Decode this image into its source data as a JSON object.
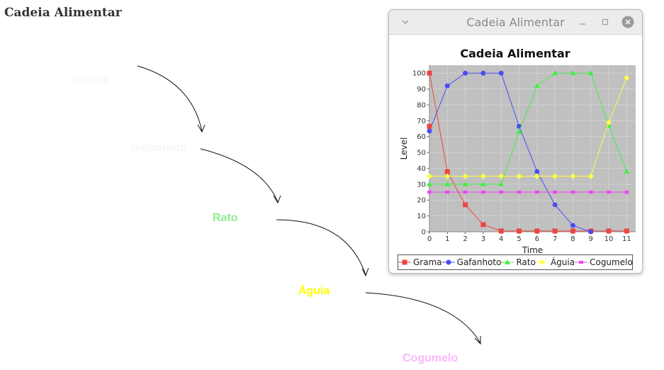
{
  "page": {
    "title": "Cadeia Alimentar"
  },
  "chain_labels": [
    {
      "text": "Grama",
      "color": "#f6f6f6"
    },
    {
      "text": "Gafanhoto",
      "color": "#f6f6f6"
    },
    {
      "text": "Rato",
      "color": "#90ee90"
    },
    {
      "text": "Águia",
      "color": "#ffff00"
    },
    {
      "text": "Cogumelo",
      "color": "#ffb6ff"
    }
  ],
  "window": {
    "title": "Cadeia Alimentar",
    "menu_icon": "chevron-down-icon",
    "minimize_icon": "minimize-icon",
    "maximize_icon": "maximize-icon",
    "close_icon": "close-icon"
  },
  "chart_data": {
    "type": "line",
    "title": "Cadeia Alimentar",
    "xlabel": "Time",
    "ylabel": "Level",
    "xlim": [
      0,
      11.5
    ],
    "ylim": [
      0,
      105
    ],
    "xticks": [
      "0",
      "1",
      "2",
      "3",
      "4",
      "5",
      "6",
      "7",
      "8",
      "9",
      "10",
      "11"
    ],
    "yticks": [
      "0",
      "10",
      "20",
      "30",
      "40",
      "50",
      "60",
      "70",
      "80",
      "90",
      "100"
    ],
    "grid": true,
    "plot_background": "#c0c0c0",
    "legend_position": "bottom",
    "x": [
      0,
      1,
      2,
      3,
      4,
      5,
      6,
      7,
      8,
      9,
      10,
      11
    ],
    "series": [
      {
        "name": "Grama",
        "color": "#ee4444",
        "marker": "square",
        "values": [
          100,
          37.8,
          17,
          4.5,
          0.5,
          0.5,
          0.5,
          0.5,
          0.5,
          0.5,
          0.5,
          0.5
        ]
      },
      {
        "name": "Gafanhoto",
        "color": "#4c4cf5",
        "marker": "circle",
        "values": [
          63.5,
          92,
          100,
          100,
          100,
          66.5,
          38,
          17,
          4,
          0,
          null,
          null
        ]
      },
      {
        "name": "Rato",
        "color": "#44ee44",
        "marker": "triangle",
        "values": [
          30,
          30,
          30,
          30,
          30,
          63,
          92,
          100,
          100,
          100,
          67,
          38
        ]
      },
      {
        "name": "Águia",
        "color": "#ffff44",
        "marker": "diamond",
        "values": [
          35,
          35,
          35,
          35,
          35,
          35,
          35,
          35,
          35,
          35,
          69,
          97
        ]
      },
      {
        "name": "Cogumelo",
        "color": "#ee44ee",
        "marker": "square-small",
        "values": [
          25,
          25,
          25,
          25,
          25,
          25,
          25,
          25,
          25,
          25,
          25,
          25
        ]
      }
    ],
    "extra_points": [
      {
        "series": "Grama",
        "x": 0,
        "y": 66.5
      }
    ]
  }
}
